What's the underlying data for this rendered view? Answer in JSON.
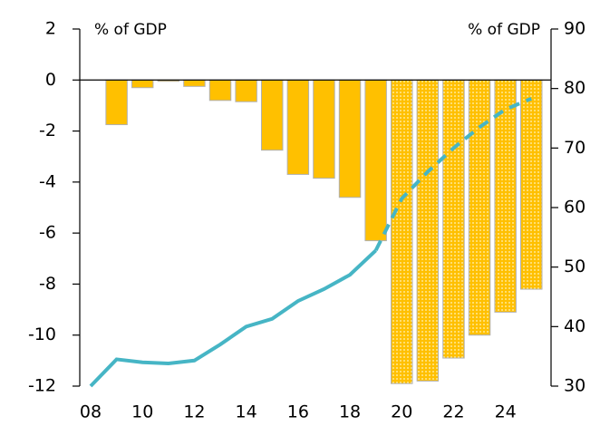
{
  "chart_data": {
    "type": "bar_line",
    "annotations": [
      "% of GDP",
      "% of GDP"
    ],
    "xlim": [
      2007.58,
      2025.76
    ],
    "xticks": [
      {
        "value": 2008,
        "label": "08"
      },
      {
        "value": 2010,
        "label": "10"
      },
      {
        "value": 2012,
        "label": "12"
      },
      {
        "value": 2014,
        "label": "14"
      },
      {
        "value": 2016,
        "label": "16"
      },
      {
        "value": 2018,
        "label": "18"
      },
      {
        "value": 2020,
        "label": "20"
      },
      {
        "value": 2022,
        "label": "22"
      },
      {
        "value": 2024,
        "label": "24"
      }
    ],
    "ylim": [
      -12,
      2
    ],
    "yticks": [
      2,
      0,
      -2,
      -4,
      -6,
      -8,
      -10,
      -12
    ],
    "y2lim": [
      30,
      90
    ],
    "y2ticks": [
      90,
      80,
      70,
      60,
      50,
      40,
      30
    ],
    "series": [
      {
        "kind": "bar",
        "style": "solid",
        "color": "#ffc000",
        "x": [
          2009,
          2010,
          2011,
          2012,
          2013,
          2014,
          2015,
          2016,
          2017,
          2018,
          2019
        ],
        "values": [
          -1.75,
          -0.3,
          -0.05,
          -0.25,
          -0.8,
          -0.85,
          -2.75,
          -3.7,
          -3.85,
          -4.6,
          -6.3
        ]
      },
      {
        "kind": "bar",
        "style": "dotted",
        "color": "#ffc000",
        "x": [
          2020,
          2021,
          2022,
          2023,
          2024,
          2025
        ],
        "values": [
          -11.9,
          -11.8,
          -10.9,
          -10.0,
          -9.1,
          -8.2
        ]
      },
      {
        "kind": "line",
        "style": "solid",
        "axis": "y2",
        "color": "#46b5c5",
        "x": [
          2008,
          2009,
          2010,
          2011,
          2012,
          2013,
          2014,
          2015,
          2016,
          2017,
          2018,
          2019
        ],
        "values": [
          30,
          34.5,
          34,
          33.8,
          34.3,
          37,
          40,
          41.3,
          44.3,
          46.3,
          48.7,
          52.8
        ]
      },
      {
        "kind": "line",
        "style": "dashed",
        "axis": "y2",
        "color": "#46b5c5",
        "x": [
          2019,
          2020,
          2021,
          2022,
          2023,
          2024,
          2025
        ],
        "values": [
          52.8,
          61.5,
          66,
          70,
          73.5,
          76.5,
          78.3
        ]
      }
    ]
  }
}
